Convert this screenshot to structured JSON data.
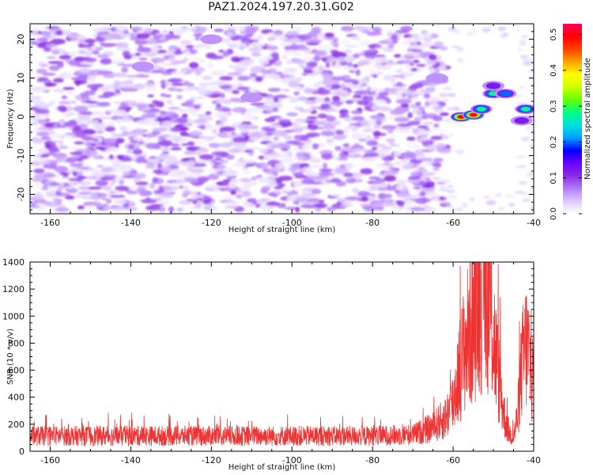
{
  "title": "PAZ1.2024.197.20.31.G02",
  "chart_data": [
    {
      "type": "heatmap",
      "xlabel": "Height of straight line (km)",
      "ylabel": "Frequency (Hz)",
      "xlim": [
        -165,
        -40
      ],
      "ylim": [
        -25,
        24
      ],
      "xticks": [
        -160,
        -140,
        -120,
        -100,
        -80,
        -60,
        -40
      ],
      "yticks": [
        -20,
        -10,
        0,
        10,
        20
      ],
      "colorbar": {
        "label": "Normalized spectral amplitude",
        "range": [
          0.0,
          0.53
        ],
        "ticks": [
          0.0,
          0.1,
          0.2,
          0.3,
          0.4,
          0.5
        ],
        "colors": [
          "#ffffff",
          "#dcc8ff",
          "#b27cff",
          "#8a2be2",
          "#6a00ff",
          "#0000ff",
          "#00a0ff",
          "#00e0e0",
          "#00ff80",
          "#66ff00",
          "#ccff00",
          "#ffff00",
          "#ffa000",
          "#ff4000",
          "#ff0000",
          "#ff0060"
        ]
      },
      "features": [
        {
          "x": -58,
          "y": 0,
          "value": 0.5
        },
        {
          "x": -55,
          "y": 0.5,
          "value": 0.5
        },
        {
          "x": -53,
          "y": 2,
          "value": 0.28
        },
        {
          "x": -50,
          "y": 6,
          "value": 0.3
        },
        {
          "x": -47,
          "y": 6,
          "value": 0.25
        },
        {
          "x": -50,
          "y": 8,
          "value": 0.12
        },
        {
          "x": -42,
          "y": 2,
          "value": 0.3
        },
        {
          "x": -43,
          "y": -1,
          "value": 0.15
        },
        {
          "x": -137,
          "y": 13,
          "value": 0.1
        },
        {
          "x": -120,
          "y": 20,
          "value": 0.06
        },
        {
          "x": -110,
          "y": 5,
          "value": 0.07
        },
        {
          "x": -64,
          "y": 10,
          "value": 0.1
        }
      ]
    },
    {
      "type": "line",
      "xlabel": "Height of straight line (km)",
      "ylabel": "SNR (10 * v/v)",
      "xlim": [
        -165,
        -40
      ],
      "ylim": [
        0,
        1400
      ],
      "xticks": [
        -160,
        -140,
        -120,
        -100,
        -80,
        -60,
        -40
      ],
      "yticks": [
        0,
        200,
        400,
        600,
        800,
        1000,
        1200,
        1400
      ],
      "color": "#ee3333",
      "envelope": {
        "x": [
          -165,
          -120,
          -80,
          -70,
          -65,
          -62,
          -60,
          -59,
          -57,
          -55,
          -54,
          -53,
          -52,
          -51,
          -50,
          -49,
          -48,
          -47,
          -46,
          -45,
          -44,
          -43,
          -42,
          -41,
          -40
        ],
        "y": [
          130,
          130,
          130,
          140,
          200,
          280,
          420,
          600,
          900,
          1100,
          1250,
          1350,
          1400,
          1300,
          1000,
          700,
          450,
          250,
          150,
          120,
          300,
          700,
          900,
          800,
          550
        ]
      }
    }
  ]
}
